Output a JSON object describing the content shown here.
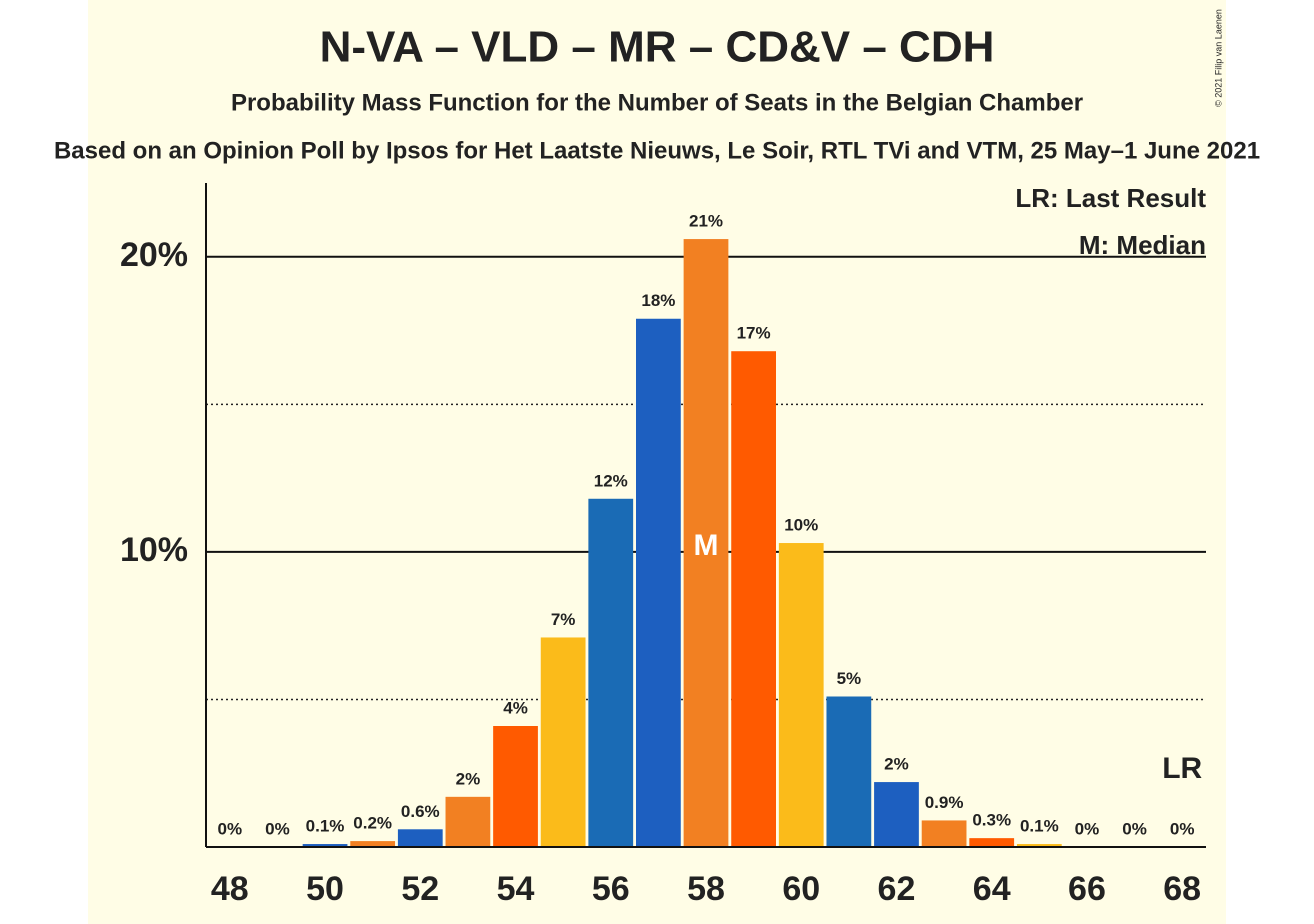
{
  "chart_data": {
    "type": "bar",
    "title": "N-VA – VLD – MR – CD&V – CDH",
    "subtitle": "Probability Mass Function for the Number of Seats in the Belgian Chamber",
    "caption": "Based on an Opinion Poll by Ipsos for Het Laatste Nieuws, Le Soir, RTL TVi and VTM, 25 May–1 June 2021",
    "copyright": "© 2021 Filip van Laenen",
    "x": [
      48,
      49,
      50,
      51,
      52,
      53,
      54,
      55,
      56,
      57,
      58,
      59,
      60,
      61,
      62,
      63,
      64,
      65,
      66,
      67,
      68
    ],
    "values": [
      0,
      0,
      0.1,
      0.2,
      0.6,
      1.7,
      4.1,
      7.1,
      11.8,
      17.9,
      20.6,
      16.8,
      10.3,
      5.1,
      2.2,
      0.9,
      0.3,
      0.1,
      0,
      0,
      0
    ],
    "value_labels": [
      "0%",
      "0%",
      "0.1%",
      "0.2%",
      "0.6%",
      "2%",
      "4%",
      "7%",
      "12%",
      "18%",
      "21%",
      "17%",
      "10%",
      "5%",
      "2%",
      "0.9%",
      "0.3%",
      "0.1%",
      "0%",
      "0%",
      "0%"
    ],
    "colors": [
      "#fbbb1a",
      "#1a6bb5",
      "#1d5fc0",
      "#f28022",
      "#1d5fc0",
      "#f28022",
      "#ff5a00",
      "#fbbb1a",
      "#1a6bb5",
      "#1d5fc0",
      "#f28022",
      "#ff5a00",
      "#fbbb1a",
      "#1a6bb5",
      "#1d5fc0",
      "#f28022",
      "#ff5a00",
      "#fbbb1a",
      "#1a6bb5",
      "#1d5fc0",
      "#f28022"
    ],
    "xlim": [
      47.5,
      68.5
    ],
    "xticks": [
      48,
      50,
      52,
      54,
      56,
      58,
      60,
      62,
      64,
      66,
      68
    ],
    "ylim": [
      0,
      22.5
    ],
    "yticks": [
      {
        "value": 10,
        "label": "10%"
      },
      {
        "value": 20,
        "label": "20%"
      }
    ],
    "minor_grid": [
      5,
      15
    ],
    "median": {
      "x": 58,
      "label": "M"
    },
    "last_result": {
      "x": 68,
      "label": "LR"
    },
    "legend_notes": [
      "LR: Last Result",
      "M: Median"
    ]
  }
}
